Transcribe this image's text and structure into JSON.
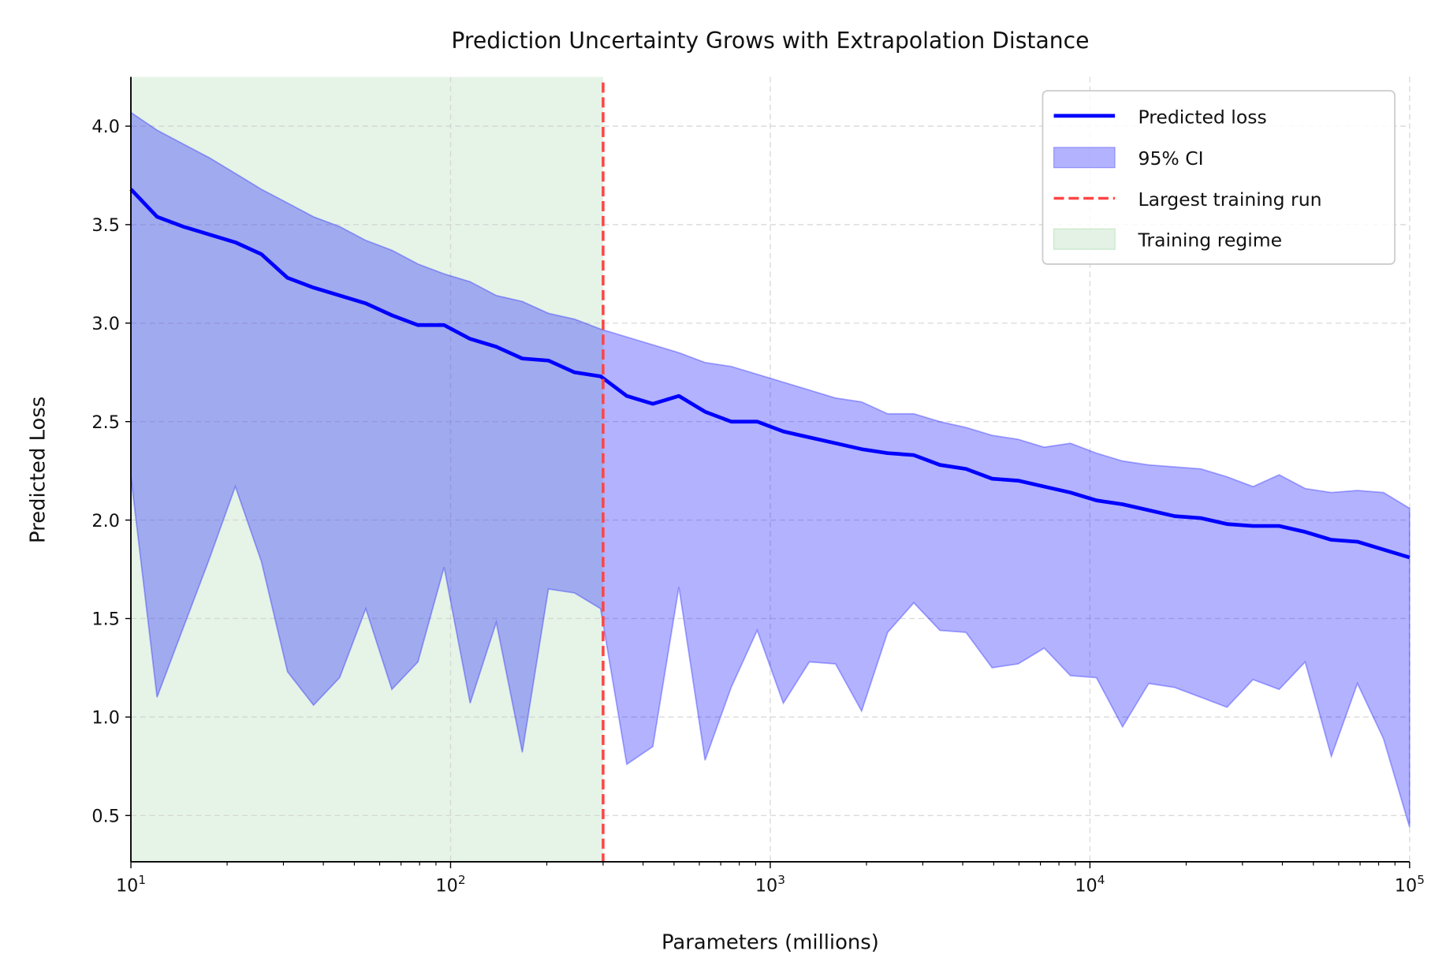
{
  "chart_data": {
    "type": "line",
    "title": "Prediction Uncertainty Grows with Extrapolation Distance",
    "xlabel": "Parameters (millions)",
    "ylabel": "Predicted Loss",
    "xscale": "log",
    "xlim": [
      10,
      100000
    ],
    "ylim": [
      0.265,
      4.25
    ],
    "xticks": [
      10,
      100,
      1000,
      10000,
      100000
    ],
    "xtick_labels": [
      [
        "10",
        "1"
      ],
      [
        "10",
        "2"
      ],
      [
        "10",
        "3"
      ],
      [
        "10",
        "4"
      ],
      [
        "10",
        "5"
      ]
    ],
    "yticks": [
      0.5,
      1.0,
      1.5,
      2.0,
      2.5,
      3.0,
      3.5,
      4.0
    ],
    "ytick_labels": [
      "0.5",
      "1.0",
      "1.5",
      "2.0",
      "2.5",
      "3.0",
      "3.5",
      "4.0"
    ],
    "grid": true,
    "legend_placement": "upper right",
    "n_points": 50,
    "series": [
      {
        "name": "Predicted loss",
        "color": "#0000ff",
        "values": [
          3.68,
          3.54,
          3.49,
          3.45,
          3.41,
          3.35,
          3.23,
          3.18,
          3.14,
          3.1,
          3.04,
          2.99,
          2.99,
          2.92,
          2.88,
          2.82,
          2.81,
          2.75,
          2.73,
          2.63,
          2.59,
          2.63,
          2.55,
          2.5,
          2.5,
          2.45,
          2.42,
          2.39,
          2.36,
          2.34,
          2.33,
          2.28,
          2.26,
          2.21,
          2.2,
          2.17,
          2.14,
          2.1,
          2.08,
          2.05,
          2.02,
          2.01,
          1.98,
          1.97,
          1.97,
          1.94,
          1.9,
          1.89,
          1.85,
          1.81
        ]
      },
      {
        "name": "95% CI",
        "color": "#0000ff",
        "upper": [
          4.07,
          3.98,
          3.91,
          3.84,
          3.76,
          3.68,
          3.61,
          3.54,
          3.49,
          3.42,
          3.37,
          3.3,
          3.25,
          3.21,
          3.14,
          3.11,
          3.05,
          3.02,
          2.97,
          2.93,
          2.89,
          2.85,
          2.8,
          2.78,
          2.74,
          2.7,
          2.66,
          2.62,
          2.6,
          2.54,
          2.54,
          2.5,
          2.47,
          2.43,
          2.41,
          2.37,
          2.39,
          2.34,
          2.3,
          2.28,
          2.27,
          2.26,
          2.22,
          2.17,
          2.23,
          2.16,
          2.14,
          2.15,
          2.14,
          2.06
        ],
        "lower": [
          2.22,
          1.1,
          1.45,
          1.8,
          2.17,
          1.79,
          1.23,
          1.06,
          1.2,
          1.55,
          1.14,
          1.28,
          1.76,
          1.07,
          1.48,
          0.82,
          1.65,
          1.63,
          1.55,
          0.76,
          0.85,
          1.66,
          0.78,
          1.15,
          1.44,
          1.07,
          1.28,
          1.27,
          1.03,
          1.43,
          1.58,
          1.44,
          1.43,
          1.25,
          1.27,
          1.35,
          1.21,
          1.2,
          0.95,
          1.17,
          1.15,
          1.1,
          1.05,
          1.19,
          1.14,
          1.28,
          0.8,
          1.17,
          0.89,
          0.44
        ]
      }
    ],
    "vline": {
      "name": "Largest training run",
      "x": 300,
      "color": "#ff4444"
    },
    "span": {
      "name": "Training regime",
      "x_start": 10,
      "x_end": 300,
      "color": "#c8e6c9"
    },
    "legend": [
      "Predicted loss",
      "95% CI",
      "Largest training run",
      "Training regime"
    ]
  }
}
